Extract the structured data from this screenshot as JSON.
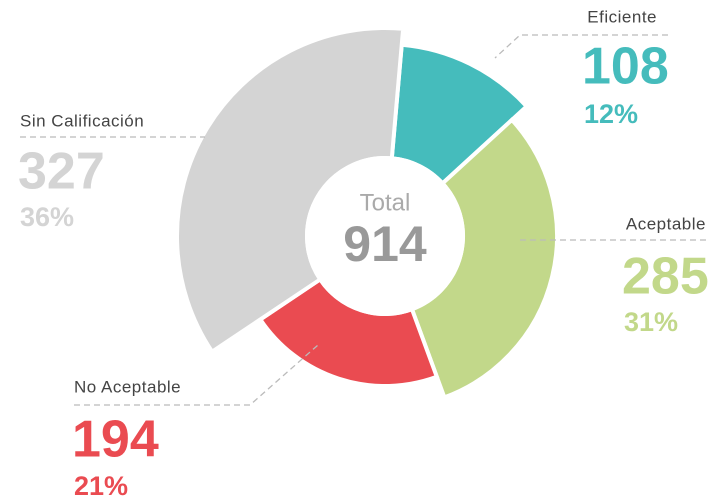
{
  "chart_data": {
    "type": "donut",
    "categories": [
      "Eficiente",
      "Aceptable",
      "No Aceptable",
      "Sin Calificación"
    ],
    "values": [
      108,
      285,
      194,
      327
    ],
    "value_labels": [
      "12%",
      "31%",
      "21%",
      "36%"
    ],
    "colors": [
      "#45bcbc",
      "#c2d88a",
      "#ea4b51",
      "#d4d4d4"
    ],
    "total_label": "Total",
    "total": 914
  }
}
